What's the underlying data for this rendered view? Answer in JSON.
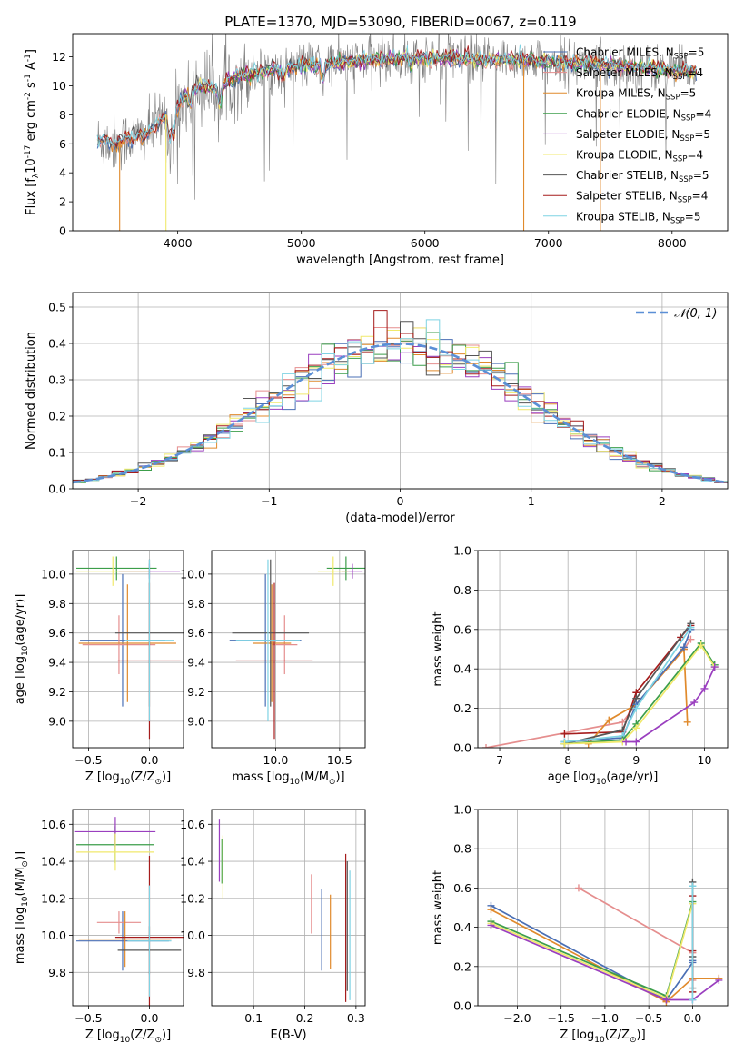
{
  "figure_title": "PLATE=1370, MJD=53090, FIBERID=0067, z=0.119",
  "colors": {
    "chabrier_miles": "#4a6fb5",
    "salpeter_miles": "#e58e8e",
    "kroupa_miles": "#e08a2c",
    "chabrier_elodie": "#3c9e4a",
    "salpeter_elodie": "#9a3fbf",
    "kroupa_elodie": "#f0e96c",
    "chabrier_stelib": "#555555",
    "salpeter_stelib": "#a51c1c",
    "kroupa_stelib": "#7fd3e3",
    "data": "#808080",
    "normal": "#5b8fd6",
    "grid": "#b0b0b0"
  },
  "legend_models": [
    {
      "label": "Chabrier MILES, N$_{SSP}$=5",
      "text": "Chabrier MILES, N",
      "sub": "SSP",
      "tail": "=5",
      "color": "#4a6fb5"
    },
    {
      "label": "Salpeter MILES, N$_{SSP}$=4",
      "text": "Salpeter MILES, N",
      "sub": "SSP",
      "tail": "=4",
      "color": "#e58e8e"
    },
    {
      "label": "Kroupa MILES, N$_{SSP}$=5",
      "text": "Kroupa MILES, N",
      "sub": "SSP",
      "tail": "=5",
      "color": "#e08a2c"
    },
    {
      "label": "Chabrier ELODIE, N$_{SSP}$=4",
      "text": "Chabrier ELODIE, N",
      "sub": "SSP",
      "tail": "=4",
      "color": "#3c9e4a"
    },
    {
      "label": "Salpeter ELODIE, N$_{SSP}$=5",
      "text": "Salpeter ELODIE, N",
      "sub": "SSP",
      "tail": "=5",
      "color": "#9a3fbf"
    },
    {
      "label": "Kroupa ELODIE, N$_{SSP}$=4",
      "text": "Kroupa ELODIE, N",
      "sub": "SSP",
      "tail": "=4",
      "color": "#f0e96c"
    },
    {
      "label": "Chabrier STELIB, N$_{SSP}$=5",
      "text": "Chabrier STELIB, N",
      "sub": "SSP",
      "tail": "=5",
      "color": "#555555"
    },
    {
      "label": "Salpeter STELIB, N$_{SSP}$=4",
      "text": "Salpeter STELIB, N",
      "sub": "SSP",
      "tail": "=4",
      "color": "#a51c1c"
    },
    {
      "label": "Kroupa STELIB, N$_{SSP}$=5",
      "text": "Kroupa STELIB, N",
      "sub": "SSP",
      "tail": "=5",
      "color": "#7fd3e3"
    }
  ],
  "chart_data": [
    {
      "id": "spectrum",
      "type": "line",
      "xlabel": "wavelength [Angstrom, rest frame]",
      "ylabel": "Flux [f$_\\lambda$10$^{-17}$ erg cm$^{-2}$ s$^{-1}$ A$^{-1}$]",
      "xlim": [
        3150,
        8450
      ],
      "ylim": [
        0,
        13.6
      ],
      "xticks": [
        4000,
        5000,
        6000,
        7000,
        8000
      ],
      "yticks": [
        0,
        2,
        4,
        6,
        8,
        10,
        12
      ],
      "grid": false,
      "legend_position": "top-right",
      "continuum": {
        "x": [
          3350,
          3500,
          3600,
          3700,
          3800,
          3900,
          4000,
          4100,
          4200,
          4300,
          4500,
          4700,
          5000,
          5300,
          5600,
          5900,
          6200,
          6500,
          6800,
          7100,
          7400,
          7700,
          8000,
          8200
        ],
        "y": [
          6.2,
          6.0,
          6.4,
          6.5,
          7.0,
          8.0,
          8.6,
          9.5,
          10.0,
          9.8,
          10.7,
          11.0,
          11.4,
          11.6,
          11.8,
          11.9,
          11.9,
          11.8,
          11.8,
          11.6,
          11.5,
          11.3,
          11.1,
          11.0
        ]
      }
    },
    {
      "id": "residuals",
      "type": "step",
      "xlabel": "(data-model)/error",
      "ylabel": "Normed distribution",
      "xlim": [
        -2.5,
        2.5
      ],
      "ylim": [
        0,
        0.54
      ],
      "xticks": [
        -2,
        -1,
        0,
        1,
        2
      ],
      "xtick_labels": [
        "−2",
        "−1",
        "0",
        "1",
        "2"
      ],
      "yticks": [
        0,
        0.1,
        0.2,
        0.3,
        0.4,
        0.5
      ],
      "ytick_labels": [
        "0.0",
        "0.1",
        "0.2",
        "0.3",
        "0.4",
        "0.5"
      ],
      "grid": true,
      "legend": {
        "label": "$\\mathcal{N}(0,1)$",
        "text": "𝒩(0, 1)",
        "position": "top-right"
      },
      "bin_width": 0.1,
      "normal_mean": 0,
      "normal_sigma": 1
    },
    {
      "id": "age_vs_Z",
      "type": "errorbar",
      "xlabel": "Z [log$_{10}$(Z/Z$_\\odot$)]",
      "ylabel": "age  [log$_{10}$(age/yr)]",
      "xlim": [
        -0.63,
        0.28
      ],
      "ylim": [
        8.82,
        10.16
      ],
      "xticks": [
        -0.5,
        0.0
      ],
      "xtick_labels": [
        "−0.5",
        "0.0"
      ],
      "yticks": [
        9.0,
        9.2,
        9.4,
        9.6,
        9.8,
        10.0
      ],
      "ytick_labels": [
        "9.0",
        "9.2",
        "9.4",
        "9.6",
        "9.8",
        "10.0"
      ],
      "grid": true,
      "points": [
        {
          "model": "chabrier_miles",
          "x": -0.22,
          "y": 9.55,
          "xerr": 0.35,
          "yerr": 0.45
        },
        {
          "model": "salpeter_miles",
          "x": -0.25,
          "y": 9.52,
          "xerr": 0.3,
          "yerr": 0.2
        },
        {
          "model": "kroupa_miles",
          "x": -0.18,
          "y": 9.53,
          "xerr": 0.4,
          "yerr": 0.4
        },
        {
          "model": "chabrier_elodie",
          "x": -0.27,
          "y": 10.04,
          "xerr": 0.33,
          "yerr": 0.08
        },
        {
          "model": "salpeter_elodie",
          "x": 0.0,
          "y": 10.02,
          "xerr": 0.25,
          "yerr": 0.05
        },
        {
          "model": "kroupa_elodie",
          "x": -0.3,
          "y": 10.02,
          "xerr": 0.3,
          "yerr": 0.1
        },
        {
          "model": "chabrier_stelib",
          "x": 0.0,
          "y": 9.6,
          "xerr": 0.28,
          "yerr": 0.5
        },
        {
          "model": "salpeter_stelib",
          "x": 0.0,
          "y": 9.41,
          "xerr": 0.26,
          "yerr": 0.53
        },
        {
          "model": "kroupa_stelib",
          "x": 0.0,
          "y": 9.55,
          "xerr": 0.2,
          "yerr": 0.55
        }
      ]
    },
    {
      "id": "age_vs_mass",
      "type": "errorbar",
      "xlabel": "mass [log$_{10}$(M/M$_\\odot$)]",
      "xlim": [
        9.5,
        10.7
      ],
      "ylim": [
        8.82,
        10.16
      ],
      "xticks": [
        10.0,
        10.5
      ],
      "xtick_labels": [
        "10.0",
        "10.5"
      ],
      "yticks": [
        9.0,
        9.2,
        9.4,
        9.6,
        9.8,
        10.0
      ],
      "ytick_labels": [
        "9.0",
        "9.2",
        "9.4",
        "9.6",
        "9.8",
        "10.0"
      ],
      "grid": true,
      "points": [
        {
          "model": "chabrier_miles",
          "x": 9.92,
          "y": 9.55,
          "xerr": 0.28,
          "yerr": 0.45
        },
        {
          "model": "salpeter_miles",
          "x": 10.07,
          "y": 9.52,
          "xerr": 0.1,
          "yerr": 0.2
        },
        {
          "model": "kroupa_miles",
          "x": 9.97,
          "y": 9.53,
          "xerr": 0.15,
          "yerr": 0.4
        },
        {
          "model": "chabrier_elodie",
          "x": 10.55,
          "y": 10.04,
          "xerr": 0.15,
          "yerr": 0.08
        },
        {
          "model": "salpeter_elodie",
          "x": 10.6,
          "y": 10.02,
          "xerr": 0.08,
          "yerr": 0.05
        },
        {
          "model": "kroupa_elodie",
          "x": 10.45,
          "y": 10.02,
          "xerr": 0.12,
          "yerr": 0.1
        },
        {
          "model": "chabrier_stelib",
          "x": 9.96,
          "y": 9.6,
          "xerr": 0.3,
          "yerr": 0.5
        },
        {
          "model": "salpeter_stelib",
          "x": 9.99,
          "y": 9.41,
          "xerr": 0.3,
          "yerr": 0.53
        },
        {
          "model": "kroupa_stelib",
          "x": 9.94,
          "y": 9.55,
          "xerr": 0.25,
          "yerr": 0.55
        }
      ]
    },
    {
      "id": "massweight_vs_age",
      "type": "line",
      "xlabel": "age  [log$_{10}$(age/yr)]",
      "ylabel": "mass weight",
      "xlim": [
        6.68,
        10.34
      ],
      "ylim": [
        0,
        1.0
      ],
      "xticks": [
        7,
        8,
        9,
        10
      ],
      "xtick_labels": [
        "7",
        "8",
        "9",
        "10"
      ],
      "yticks": [
        0,
        0.2,
        0.4,
        0.6,
        0.8,
        1.0
      ],
      "ytick_labels": [
        "0.0",
        "0.2",
        "0.4",
        "0.6",
        "0.8",
        "1.0"
      ],
      "grid": true,
      "series": [
        {
          "model": "salpeter_miles",
          "x": [
            6.8,
            8.8,
            9.0,
            9.7,
            9.8
          ],
          "y": [
            0.0,
            0.13,
            0.22,
            0.5,
            0.55
          ]
        },
        {
          "model": "salpeter_stelib",
          "x": [
            7.95,
            8.8,
            9.0,
            9.65,
            9.8
          ],
          "y": [
            0.07,
            0.08,
            0.28,
            0.56,
            0.62
          ]
        },
        {
          "model": "kroupa_miles",
          "x": [
            8.3,
            8.6,
            9.0,
            9.7,
            9.75
          ],
          "y": [
            0.02,
            0.14,
            0.22,
            0.5,
            0.13
          ]
        },
        {
          "model": "chabrier_stelib",
          "x": [
            7.95,
            8.8,
            9.0,
            9.8
          ],
          "y": [
            0.02,
            0.09,
            0.25,
            0.63
          ]
        },
        {
          "model": "chabrier_miles",
          "x": [
            7.95,
            8.8,
            9.0,
            9.7,
            9.8
          ],
          "y": [
            0.03,
            0.05,
            0.22,
            0.51,
            0.6
          ]
        },
        {
          "model": "kroupa_stelib",
          "x": [
            7.95,
            8.8,
            9.0,
            9.8
          ],
          "y": [
            0.03,
            0.06,
            0.2,
            0.61
          ]
        },
        {
          "model": "chabrier_elodie",
          "x": [
            7.95,
            8.8,
            9.0,
            9.95,
            10.15
          ],
          "y": [
            0.02,
            0.04,
            0.12,
            0.53,
            0.42
          ]
        },
        {
          "model": "kroupa_elodie",
          "x": [
            7.95,
            8.8,
            9.0,
            9.95,
            10.15
          ],
          "y": [
            0.02,
            0.03,
            0.1,
            0.52,
            0.41
          ]
        },
        {
          "model": "salpeter_elodie",
          "x": [
            8.85,
            9.0,
            9.85,
            10.0,
            10.15
          ],
          "y": [
            0.03,
            0.03,
            0.23,
            0.3,
            0.41
          ]
        }
      ]
    },
    {
      "id": "mass_vs_Z",
      "type": "errorbar",
      "xlabel": "Z [log$_{10}$(Z/Z$_\\odot$)]",
      "ylabel": "mass [log$_{10}$(M/M$_\\odot$)]",
      "xlim": [
        -0.63,
        0.28
      ],
      "ylim": [
        9.62,
        10.68
      ],
      "xticks": [
        -0.5,
        0.0
      ],
      "xtick_labels": [
        "−0.5",
        "0.0"
      ],
      "yticks": [
        9.8,
        10.0,
        10.2,
        10.4,
        10.6
      ],
      "ytick_labels": [
        "9.8",
        "10.0",
        "10.2",
        "10.4",
        "10.6"
      ],
      "grid": true,
      "points": [
        {
          "model": "chabrier_miles",
          "x": -0.22,
          "y": 9.97,
          "xerr": 0.38,
          "yerr": 0.16
        },
        {
          "model": "salpeter_miles",
          "x": -0.25,
          "y": 10.07,
          "xerr": 0.18,
          "yerr": 0.06
        },
        {
          "model": "kroupa_miles",
          "x": -0.2,
          "y": 9.98,
          "xerr": 0.38,
          "yerr": 0.15
        },
        {
          "model": "chabrier_elodie",
          "x": -0.28,
          "y": 10.49,
          "xerr": 0.32,
          "yerr": 0.1
        },
        {
          "model": "salpeter_elodie",
          "x": -0.28,
          "y": 10.56,
          "xerr": 0.33,
          "yerr": 0.08
        },
        {
          "model": "kroupa_elodie",
          "x": -0.28,
          "y": 10.45,
          "xerr": 0.32,
          "yerr": 0.1
        },
        {
          "model": "chabrier_stelib",
          "x": 0.0,
          "y": 9.92,
          "xerr": 0.26,
          "yerr": 0.13
        },
        {
          "model": "salpeter_stelib",
          "x": 0.0,
          "y": 9.99,
          "xerr": 0.28,
          "yerr": 0.44
        },
        {
          "model": "kroupa_stelib",
          "x": 0.0,
          "y": 9.97,
          "xerr": 0.18,
          "yerr": 0.3
        }
      ]
    },
    {
      "id": "mass_vs_EBV",
      "type": "errorbar",
      "xlabel": "E(B-V)",
      "xlim": [
        0.018,
        0.318
      ],
      "ylim": [
        9.62,
        10.68
      ],
      "xticks": [
        0.1,
        0.2,
        0.3
      ],
      "xtick_labels": [
        "0.1",
        "0.2",
        "0.3"
      ],
      "yticks": [
        9.8,
        10.0,
        10.2,
        10.4,
        10.6
      ],
      "ytick_labels": [
        "9.8",
        "10.0",
        "10.2",
        "10.4",
        "10.6"
      ],
      "grid": true,
      "points": [
        {
          "model": "chabrier_miles",
          "x": 0.233,
          "y": 10.03,
          "xerr": 0,
          "yerr": 0.22
        },
        {
          "model": "salpeter_miles",
          "x": 0.213,
          "y": 10.17,
          "xerr": 0,
          "yerr": 0.16
        },
        {
          "model": "kroupa_miles",
          "x": 0.25,
          "y": 10.02,
          "xerr": 0,
          "yerr": 0.2
        },
        {
          "model": "chabrier_elodie",
          "x": 0.038,
          "y": 10.4,
          "xerr": 0,
          "yerr": 0.12
        },
        {
          "model": "salpeter_elodie",
          "x": 0.033,
          "y": 10.46,
          "xerr": 0,
          "yerr": 0.17
        },
        {
          "model": "kroupa_elodie",
          "x": 0.04,
          "y": 10.37,
          "xerr": 0,
          "yerr": 0.17
        },
        {
          "model": "chabrier_stelib",
          "x": 0.283,
          "y": 10.05,
          "xerr": 0,
          "yerr": 0.35
        },
        {
          "model": "salpeter_stelib",
          "x": 0.28,
          "y": 10.04,
          "xerr": 0,
          "yerr": 0.4
        },
        {
          "model": "kroupa_stelib",
          "x": 0.288,
          "y": 10.0,
          "xerr": 0,
          "yerr": 0.35
        }
      ]
    },
    {
      "id": "massweight_vs_Z",
      "type": "line",
      "xlabel": "Z [log$_{10}$(Z/Z$_\\odot$)]",
      "ylabel": "mass weight",
      "xlim": [
        -2.45,
        0.4
      ],
      "ylim": [
        0,
        1.0
      ],
      "xticks": [
        -2.0,
        -1.5,
        -1.0,
        -0.5,
        0.0
      ],
      "xtick_labels": [
        "−2.0",
        "−1.5",
        "−1.0",
        "−0.5",
        "0.0"
      ],
      "yticks": [
        0,
        0.2,
        0.4,
        0.6,
        0.8,
        1.0
      ],
      "ytick_labels": [
        "0.0",
        "0.2",
        "0.4",
        "0.6",
        "0.8",
        "1.0"
      ],
      "grid": true,
      "series": [
        {
          "model": "chabrier_miles",
          "x": [
            -2.3,
            -0.3,
            0.0,
            0.0
          ],
          "y": [
            0.51,
            0.03,
            0.22,
            0.23
          ]
        },
        {
          "model": "kroupa_miles",
          "x": [
            -2.3,
            -0.3,
            0.0,
            0.3
          ],
          "y": [
            0.49,
            0.02,
            0.14,
            0.14
          ]
        },
        {
          "model": "salpeter_miles",
          "x": [
            -1.3,
            0.0,
            0.0
          ],
          "y": [
            0.6,
            0.27,
            0.13
          ]
        },
        {
          "model": "chabrier_elodie",
          "x": [
            -2.3,
            -0.3,
            0.0
          ],
          "y": [
            0.43,
            0.05,
            0.53
          ]
        },
        {
          "model": "kroupa_elodie",
          "x": [
            -2.3,
            -0.3,
            0.0
          ],
          "y": [
            0.42,
            0.04,
            0.52
          ]
        },
        {
          "model": "salpeter_elodie",
          "x": [
            -2.3,
            -0.3,
            0.0,
            0.3
          ],
          "y": [
            0.41,
            0.03,
            0.03,
            0.13
          ]
        },
        {
          "model": "chabrier_stelib",
          "x": [
            0.0,
            0.0,
            0.0
          ],
          "y": [
            0.63,
            0.25,
            0.09
          ]
        },
        {
          "model": "salpeter_stelib",
          "x": [
            0.0,
            0.0,
            0.0
          ],
          "y": [
            0.56,
            0.28,
            0.07
          ]
        },
        {
          "model": "kroupa_stelib",
          "x": [
            0.0,
            0.0
          ],
          "y": [
            0.61,
            0.03
          ]
        }
      ]
    }
  ]
}
